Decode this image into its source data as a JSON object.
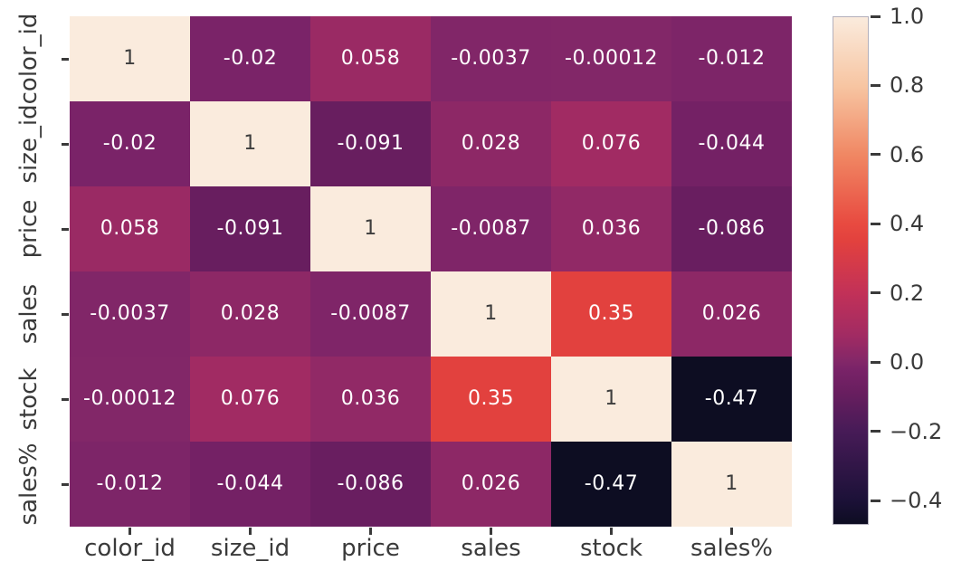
{
  "figure": {
    "background": "#ffffff",
    "text_color": "#3a3a3a",
    "title": ""
  },
  "chart_data": {
    "type": "heatmap",
    "title": "",
    "xlabel": "",
    "ylabel": "",
    "grid": false,
    "legend": false,
    "x_tick_labels": [
      "color_id",
      "size_id",
      "price",
      "sales",
      "stock",
      "sales%"
    ],
    "y_tick_labels": [
      "color_id",
      "size_id",
      "price",
      "sales",
      "stock",
      "sales%"
    ],
    "values": [
      [
        1,
        -0.02,
        0.058,
        -0.0037,
        -0.00012,
        -0.012
      ],
      [
        -0.02,
        1,
        -0.091,
        0.028,
        0.076,
        -0.044
      ],
      [
        0.058,
        -0.091,
        1,
        -0.0087,
        0.036,
        -0.086
      ],
      [
        -0.0037,
        0.028,
        -0.0087,
        1,
        0.35,
        0.026
      ],
      [
        -0.00012,
        0.076,
        0.036,
        0.35,
        1,
        -0.47
      ],
      [
        -0.012,
        -0.044,
        -0.086,
        0.026,
        -0.47,
        1
      ]
    ],
    "cell_labels": [
      [
        "1",
        "-0.02",
        "0.058",
        "-0.0037",
        "-0.00012",
        "-0.012"
      ],
      [
        "-0.02",
        "1",
        "-0.091",
        "0.028",
        "0.076",
        "-0.044"
      ],
      [
        "0.058",
        "-0.091",
        "1",
        "-0.0087",
        "0.036",
        "-0.086"
      ],
      [
        "-0.0037",
        "0.028",
        "-0.0087",
        "1",
        "0.35",
        "0.026"
      ],
      [
        "-0.00012",
        "0.076",
        "0.036",
        "0.35",
        "1",
        "-0.47"
      ],
      [
        "-0.012",
        "-0.044",
        "-0.086",
        "0.026",
        "-0.47",
        "1"
      ]
    ],
    "vmin": -0.47,
    "vmax": 1.0,
    "colormap": {
      "name": "rocket",
      "stops": [
        {
          "v": -0.47,
          "c": "#0D0D22"
        },
        {
          "v": -0.4,
          "c": "#1C1138"
        },
        {
          "v": -0.2,
          "c": "#471B57"
        },
        {
          "v": -0.091,
          "c": "#681E5F"
        },
        {
          "v": -0.02,
          "c": "#7A2368"
        },
        {
          "v": 0.0,
          "c": "#822768"
        },
        {
          "v": 0.076,
          "c": "#A12B63"
        },
        {
          "v": 0.2,
          "c": "#C23158"
        },
        {
          "v": 0.35,
          "c": "#E2413E"
        },
        {
          "v": 0.4,
          "c": "#E84A40"
        },
        {
          "v": 0.6,
          "c": "#F08763"
        },
        {
          "v": 0.8,
          "c": "#F7C5A2"
        },
        {
          "v": 1.0,
          "c": "#FAEBDD"
        }
      ]
    },
    "colorbar": {
      "position": "right",
      "tick_values": [
        1.0,
        0.8,
        0.6,
        0.4,
        0.2,
        0.0,
        -0.2,
        -0.4
      ],
      "tick_labels": [
        "1.0",
        "0.8",
        "0.6",
        "0.4",
        "0.2",
        "0.0",
        "−0.2",
        "−0.4"
      ]
    },
    "annotation_color_on_dark": "#ffffff",
    "annotation_color_on_light": "#3d3d3d"
  }
}
